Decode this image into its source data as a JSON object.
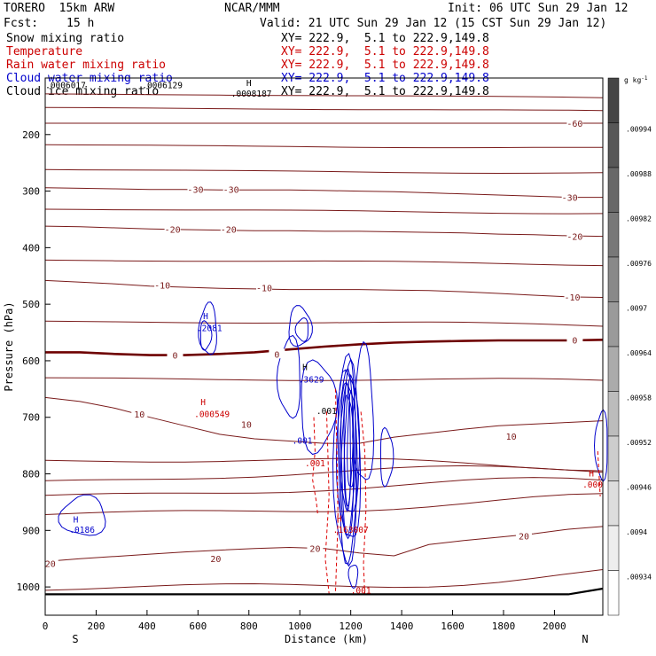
{
  "header": {
    "model": "TORERO  15km ARW",
    "center": "NCAR/MMM",
    "init": "Init: 06 UTC Sun 29 Jan 12",
    "fcst_label": "Fcst:",
    "fcst_value": "15 h",
    "valid": "Valid: 21 UTC Sun 29 Jan 12 (15 CST Sun 29 Jan 12)"
  },
  "legend": [
    {
      "name": "Snow mixing ratio",
      "xy": "XY= 222.9,  5.1 to 222.9,149.8",
      "color": "#000000"
    },
    {
      "name": "Temperature",
      "xy": "XY= 222.9,  5.1 to 222.9,149.8",
      "color": "#cc0000"
    },
    {
      "name": "Rain water mixing ratio",
      "xy": "XY= 222.9,  5.1 to 222.9,149.8",
      "color": "#cc0000"
    },
    {
      "name": "Cloud water mixing ratio",
      "xy": "XY= 222.9,  5.1 to 222.9,149.8",
      "color": "#0000cc"
    },
    {
      "name": "Cloud ice mixing ratio",
      "xy": "XY= 222.9,  5.1 to 222.9,149.8",
      "color": "#000000"
    }
  ],
  "colorbar": {
    "units": "g kg",
    "units_exp": "-1",
    "ticks": [
      ".00994",
      ".00988",
      ".00982",
      ".00976",
      ".0097",
      ".00964",
      ".00958",
      ".00952",
      ".00946",
      ".0094",
      ".00934"
    ]
  },
  "chart_data": {
    "type": "line",
    "subtype": "vertical cross-section contour plot",
    "xlabel": "Distance (km)",
    "ylabel": "Pressure (hPa)",
    "xlim": [
      0,
      2190
    ],
    "ylim": [
      1050,
      100
    ],
    "x_ticks": [
      0,
      200,
      400,
      600,
      800,
      1000,
      1200,
      1400,
      1600,
      1800,
      2000
    ],
    "y_ticks": [
      200,
      300,
      400,
      500,
      600,
      700,
      800,
      900,
      1000
    ],
    "x_end_labels": {
      "left": "S",
      "right": "N"
    },
    "colors": {
      "temperature": "#7a1a1a",
      "zero_isotherm": "#6e0000",
      "cloud_water": "#0000cc",
      "rain": "#dd0000",
      "text_black": "#000000",
      "terrain": "#000000"
    },
    "temperature_isotherms": [
      {
        "temp": 20,
        "p": [
          955,
          950,
          946,
          942,
          938,
          935,
          932,
          930,
          932,
          940,
          945,
          925,
          918,
          912,
          906,
          898,
          893
        ]
      },
      {
        "temp": 10,
        "p": [
          665,
          672,
          684,
          700,
          715,
          730,
          738,
          742,
          746,
          746,
          735,
          728,
          721,
          715,
          712,
          709,
          706
        ]
      },
      {
        "temp": 0,
        "p": [
          585,
          585,
          588,
          590,
          590,
          588,
          585,
          580,
          575,
          571,
          568,
          566,
          565,
          564,
          564,
          564,
          563
        ]
      },
      {
        "temp": -10,
        "p": [
          458,
          461,
          464,
          468,
          470,
          472,
          473,
          474,
          474,
          474,
          475,
          476,
          478,
          481,
          484,
          487,
          488
        ]
      },
      {
        "temp": -20,
        "p": [
          362,
          363,
          365,
          367,
          368,
          369,
          370,
          370,
          371,
          371,
          372,
          373,
          374,
          376,
          377,
          379,
          380
        ]
      },
      {
        "temp": -30,
        "p": [
          294,
          295,
          296,
          297,
          297,
          298,
          298,
          298,
          299,
          300,
          301,
          303,
          305,
          307,
          309,
          311,
          311
        ]
      },
      {
        "temp": -60,
        "p": [
          180,
          180,
          180,
          180,
          180,
          180,
          180,
          180,
          180,
          180,
          180,
          180,
          180,
          180,
          180,
          180,
          180
        ]
      }
    ],
    "isotherm_x": [
      0,
      137,
      274,
      411,
      548,
      685,
      822,
      959,
      1096,
      1233,
      1370,
      1507,
      1644,
      1781,
      1918,
      2055,
      2190
    ],
    "extra_isotherms_p_at_left": [
      1006,
      872,
      838,
      812,
      776,
      630,
      530,
      422,
      332,
      262,
      218,
      152,
      128
    ],
    "isotherm_labels": [
      {
        "text": "20",
        "x": 20,
        "p": 958
      },
      {
        "text": "20",
        "x": 670,
        "p": 950
      },
      {
        "text": "20",
        "x": 1060,
        "p": 932
      },
      {
        "text": "20",
        "x": 1880,
        "p": 910
      },
      {
        "text": "10",
        "x": 370,
        "p": 694
      },
      {
        "text": "10",
        "x": 790,
        "p": 712
      },
      {
        "text": "10",
        "x": 1830,
        "p": 733
      },
      {
        "text": "0",
        "x": 510,
        "p": 590
      },
      {
        "text": "0",
        "x": 910,
        "p": 588
      },
      {
        "text": "0",
        "x": 2080,
        "p": 563
      },
      {
        "text": "-10",
        "x": 460,
        "p": 466
      },
      {
        "text": "-10",
        "x": 860,
        "p": 471
      },
      {
        "text": "-10",
        "x": 2070,
        "p": 487
      },
      {
        "text": "-20",
        "x": 500,
        "p": 367
      },
      {
        "text": "-20",
        "x": 720,
        "p": 367
      },
      {
        "text": "-20",
        "x": 2080,
        "p": 380
      },
      {
        "text": "-30",
        "x": 590,
        "p": 297
      },
      {
        "text": "-30",
        "x": 730,
        "p": 297
      },
      {
        "text": "-30",
        "x": 2060,
        "p": 311
      },
      {
        "text": "-60",
        "x": 2080,
        "p": 180
      }
    ],
    "terrain_p": [
      1013,
      1013,
      1013,
      1013,
      1013,
      1013,
      1013,
      1013,
      1013,
      1013,
      1013,
      1013,
      1013,
      1013,
      1013,
      1013,
      1003
    ],
    "annotations": [
      {
        "text": "H",
        "x": 630,
        "p": 520,
        "color": "#0000cc"
      },
      {
        "text": ".2081",
        "x": 645,
        "p": 541,
        "color": "#0000cc"
      },
      {
        "text": "H",
        "x": 1020,
        "p": 610,
        "color": "#000000"
      },
      {
        "text": ".3629",
        "x": 1045,
        "p": 632,
        "color": "#0000cc"
      },
      {
        "text": ".001",
        "x": 1105,
        "p": 688,
        "color": "#000000"
      },
      {
        "text": ".001",
        "x": 1010,
        "p": 740,
        "color": "#0000cc"
      },
      {
        "text": ".001",
        "x": 1060,
        "p": 780,
        "color": "#cc0000"
      },
      {
        "text": "H",
        "x": 620,
        "p": 672,
        "color": "#cc0000"
      },
      {
        "text": ".000549",
        "x": 655,
        "p": 693,
        "color": "#cc0000"
      },
      {
        "text": "H",
        "x": 1155,
        "p": 878,
        "color": "#cc0000"
      },
      {
        "text": ".163007",
        "x": 1200,
        "p": 898,
        "color": "#cc0000"
      },
      {
        "text": ".001",
        "x": 1240,
        "p": 1005,
        "color": "#cc0000"
      },
      {
        "text": "H",
        "x": 120,
        "p": 880,
        "color": "#0000cc"
      },
      {
        "text": ".0186",
        "x": 145,
        "p": 898,
        "color": "#0000cc"
      },
      {
        "text": "H",
        "x": 2145,
        "p": 798,
        "color": "#cc0000"
      },
      {
        "text": ".000",
        "x": 2150,
        "p": 818,
        "color": "#cc0000"
      },
      {
        "text": "H",
        "x": 800,
        "p": 108,
        "color": "#000000"
      },
      {
        "text": ".0008187",
        "x": 810,
        "p": 127,
        "color": "#000000"
      },
      {
        "text": ".0006129",
        "x": 460,
        "p": 112,
        "color": "#000000"
      },
      {
        "text": ".0006017",
        "x": 80,
        "p": 112,
        "color": "#000000"
      }
    ]
  }
}
